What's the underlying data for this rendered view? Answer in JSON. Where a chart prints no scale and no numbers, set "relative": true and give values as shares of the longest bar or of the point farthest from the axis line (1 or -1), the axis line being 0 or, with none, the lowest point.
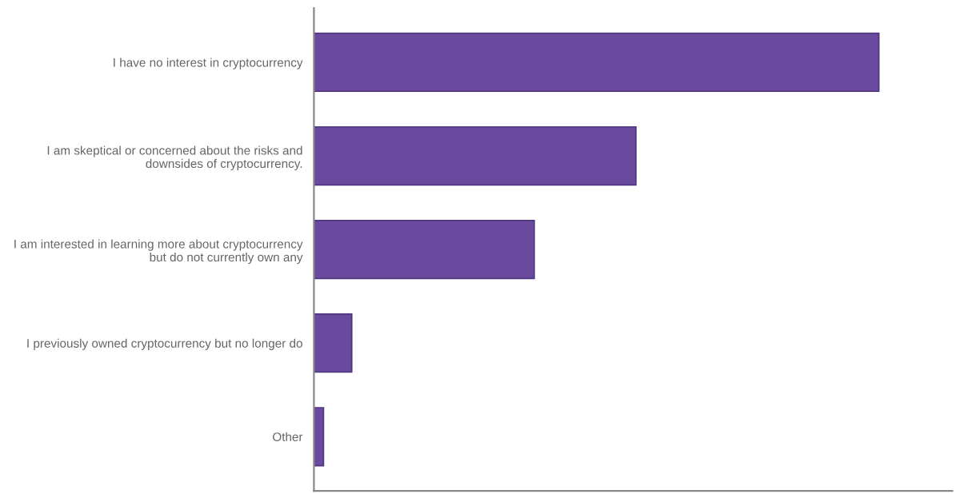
{
  "chart_data": {
    "type": "bar",
    "orientation": "horizontal",
    "relative": true,
    "categories": [
      "I have no interest in cryptocurrency",
      "I am skeptical or concerned about the risks and downsides of cryptocurrency.",
      "I am interested in learning more about cryptocurrency but do not currently own any",
      "I previously owned cryptocurrency but no longer do",
      "Other"
    ],
    "values": [
      1,
      0.57,
      0.39,
      0.067,
      0.017
    ],
    "color": "#6a4a9e",
    "grid": false,
    "legend": false
  }
}
